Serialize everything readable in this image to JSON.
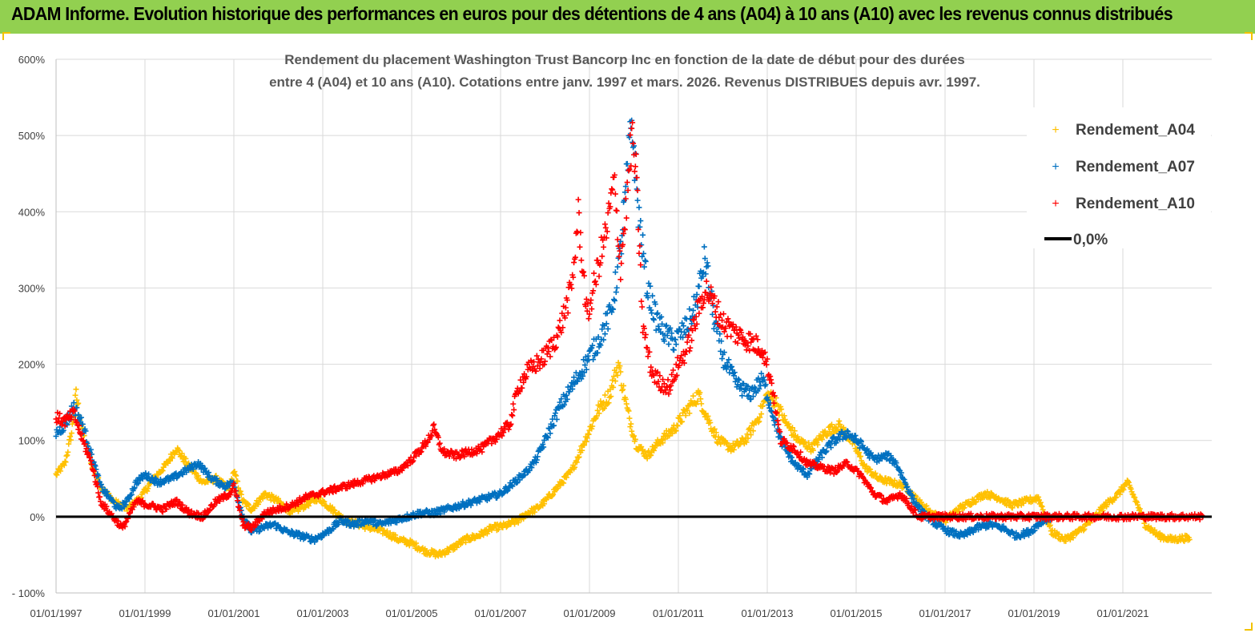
{
  "header": {
    "title": "ADAM Informe. Evolution historique des performances en euros pour des détentions de 4 ans (A04) à 10 ans (A10) avec les revenus connus distribués"
  },
  "colors": {
    "banner": "#92d050",
    "a04": "#ffc000",
    "a07": "#0070c0",
    "a10": "#ff0000",
    "zero": "#000000",
    "grid": "#d9d9d9"
  },
  "chart_data": {
    "type": "scatter",
    "title_lines": [
      "Rendement du placement Washington Trust Bancorp Inc en fonction de la date de début pour des durées",
      "entre 4 (A04) et 10 ans (A10). Cotations entre janv. 1997 et mars. 2026. Revenus DISTRIBUES depuis avr. 1997."
    ],
    "xlabel": "",
    "ylabel": "",
    "x_range": [
      1997.0,
      2023.0
    ],
    "ylim": [
      -100,
      600
    ],
    "y_ticks": [
      -100,
      0,
      100,
      200,
      300,
      400,
      500,
      600
    ],
    "y_tick_labels": [
      "- 100%",
      "0%",
      "100%",
      "200%",
      "300%",
      "400%",
      "500%",
      "600%"
    ],
    "x_ticks": [
      1997,
      1999,
      2001,
      2003,
      2005,
      2007,
      2009,
      2011,
      2013,
      2015,
      2017,
      2019,
      2021
    ],
    "x_tick_labels": [
      "01/01/1997",
      "01/01/1999",
      "01/01/2001",
      "01/01/2003",
      "01/01/2005",
      "01/01/2007",
      "01/01/2009",
      "01/01/2011",
      "01/01/2013",
      "01/01/2015",
      "01/01/2017",
      "01/01/2019",
      "01/01/2021"
    ],
    "legend_position": "top-right",
    "series": [
      {
        "name": "Rendement_A04",
        "marker": "+",
        "points": [
          [
            1997.0,
            55
          ],
          [
            1997.2,
            70
          ],
          [
            1997.35,
            110
          ],
          [
            1997.45,
            160
          ],
          [
            1997.6,
            110
          ],
          [
            1997.8,
            70
          ],
          [
            1998.0,
            40
          ],
          [
            1998.3,
            20
          ],
          [
            1998.6,
            10
          ],
          [
            1998.9,
            25
          ],
          [
            1999.2,
            50
          ],
          [
            1999.5,
            70
          ],
          [
            1999.7,
            90
          ],
          [
            2000.0,
            65
          ],
          [
            2000.3,
            45
          ],
          [
            2000.6,
            50
          ],
          [
            2000.9,
            35
          ],
          [
            2001.0,
            60
          ],
          [
            2001.2,
            20
          ],
          [
            2001.4,
            10
          ],
          [
            2001.7,
            30
          ],
          [
            2002.0,
            20
          ],
          [
            2002.3,
            5
          ],
          [
            2002.6,
            15
          ],
          [
            2002.9,
            25
          ],
          [
            2003.2,
            10
          ],
          [
            2003.5,
            -5
          ],
          [
            2003.8,
            -10
          ],
          [
            2004.1,
            -15
          ],
          [
            2004.4,
            -20
          ],
          [
            2004.7,
            -30
          ],
          [
            2005.0,
            -35
          ],
          [
            2005.3,
            -45
          ],
          [
            2005.6,
            -50
          ],
          [
            2005.9,
            -42
          ],
          [
            2006.2,
            -30
          ],
          [
            2006.5,
            -25
          ],
          [
            2006.8,
            -15
          ],
          [
            2007.1,
            -12
          ],
          [
            2007.4,
            -5
          ],
          [
            2007.6,
            5
          ],
          [
            2007.8,
            10
          ],
          [
            2008.0,
            20
          ],
          [
            2008.3,
            40
          ],
          [
            2008.6,
            60
          ],
          [
            2008.9,
            100
          ],
          [
            2009.2,
            140
          ],
          [
            2009.45,
            160
          ],
          [
            2009.65,
            200
          ],
          [
            2009.85,
            140
          ],
          [
            2010.05,
            95
          ],
          [
            2010.3,
            80
          ],
          [
            2010.6,
            100
          ],
          [
            2010.9,
            115
          ],
          [
            2011.2,
            140
          ],
          [
            2011.45,
            160
          ],
          [
            2011.65,
            130
          ],
          [
            2011.9,
            100
          ],
          [
            2012.2,
            90
          ],
          [
            2012.5,
            100
          ],
          [
            2012.8,
            130
          ],
          [
            2013.0,
            160
          ],
          [
            2013.2,
            150
          ],
          [
            2013.4,
            125
          ],
          [
            2013.7,
            100
          ],
          [
            2014.0,
            90
          ],
          [
            2014.3,
            110
          ],
          [
            2014.6,
            120
          ],
          [
            2014.9,
            100
          ],
          [
            2015.2,
            65
          ],
          [
            2015.5,
            50
          ],
          [
            2015.8,
            45
          ],
          [
            2016.1,
            40
          ],
          [
            2016.4,
            20
          ],
          [
            2016.7,
            5
          ],
          [
            2017.0,
            -5
          ],
          [
            2017.3,
            10
          ],
          [
            2017.6,
            20
          ],
          [
            2017.9,
            30
          ],
          [
            2018.2,
            25
          ],
          [
            2018.5,
            15
          ],
          [
            2018.8,
            20
          ],
          [
            2019.1,
            25
          ],
          [
            2019.4,
            -20
          ],
          [
            2019.7,
            -30
          ],
          [
            2020.0,
            -20
          ],
          [
            2020.3,
            -5
          ],
          [
            2020.6,
            15
          ],
          [
            2020.9,
            30
          ],
          [
            2021.1,
            45
          ],
          [
            2021.3,
            20
          ],
          [
            2021.5,
            -10
          ],
          [
            2021.8,
            -25
          ],
          [
            2022.1,
            -30
          ],
          [
            2022.4,
            -28
          ],
          [
            2022.5,
            -30
          ]
        ]
      },
      {
        "name": "Rendement_A07",
        "marker": "+",
        "points": [
          [
            1997.0,
            110
          ],
          [
            1997.2,
            120
          ],
          [
            1997.4,
            145
          ],
          [
            1997.6,
            120
          ],
          [
            1997.8,
            80
          ],
          [
            1998.0,
            40
          ],
          [
            1998.2,
            25
          ],
          [
            1998.4,
            10
          ],
          [
            1998.6,
            20
          ],
          [
            1998.8,
            45
          ],
          [
            1999.0,
            55
          ],
          [
            1999.3,
            45
          ],
          [
            1999.6,
            50
          ],
          [
            1999.9,
            60
          ],
          [
            2000.2,
            70
          ],
          [
            2000.5,
            50
          ],
          [
            2000.8,
            40
          ],
          [
            2001.0,
            45
          ],
          [
            2001.2,
            0
          ],
          [
            2001.4,
            -20
          ],
          [
            2001.6,
            -15
          ],
          [
            2001.9,
            -10
          ],
          [
            2002.2,
            -20
          ],
          [
            2002.5,
            -25
          ],
          [
            2002.8,
            -30
          ],
          [
            2003.1,
            -20
          ],
          [
            2003.4,
            -5
          ],
          [
            2003.7,
            -10
          ],
          [
            2004.0,
            -5
          ],
          [
            2004.3,
            -10
          ],
          [
            2004.6,
            -5
          ],
          [
            2004.9,
            0
          ],
          [
            2005.2,
            5
          ],
          [
            2005.5,
            5
          ],
          [
            2005.8,
            10
          ],
          [
            2006.1,
            15
          ],
          [
            2006.4,
            20
          ],
          [
            2006.7,
            25
          ],
          [
            2007.0,
            30
          ],
          [
            2007.3,
            45
          ],
          [
            2007.6,
            60
          ],
          [
            2007.8,
            75
          ],
          [
            2008.0,
            100
          ],
          [
            2008.3,
            140
          ],
          [
            2008.6,
            170
          ],
          [
            2008.9,
            200
          ],
          [
            2009.2,
            230
          ],
          [
            2009.5,
            270
          ],
          [
            2009.7,
            350
          ],
          [
            2009.85,
            450
          ],
          [
            2009.95,
            520
          ],
          [
            2010.1,
            400
          ],
          [
            2010.3,
            300
          ],
          [
            2010.5,
            260
          ],
          [
            2010.7,
            240
          ],
          [
            2010.9,
            230
          ],
          [
            2011.2,
            250
          ],
          [
            2011.4,
            280
          ],
          [
            2011.6,
            340
          ],
          [
            2011.8,
            260
          ],
          [
            2012.0,
            210
          ],
          [
            2012.3,
            175
          ],
          [
            2012.6,
            160
          ],
          [
            2012.9,
            180
          ],
          [
            2013.1,
            140
          ],
          [
            2013.3,
            100
          ],
          [
            2013.6,
            70
          ],
          [
            2013.9,
            55
          ],
          [
            2014.2,
            80
          ],
          [
            2014.5,
            100
          ],
          [
            2014.8,
            110
          ],
          [
            2015.1,
            95
          ],
          [
            2015.4,
            75
          ],
          [
            2015.7,
            80
          ],
          [
            2015.9,
            70
          ],
          [
            2016.1,
            45
          ],
          [
            2016.3,
            20
          ],
          [
            2016.5,
            5
          ],
          [
            2016.8,
            -10
          ],
          [
            2017.1,
            -20
          ],
          [
            2017.4,
            -25
          ],
          [
            2017.7,
            -15
          ],
          [
            2018.0,
            -10
          ],
          [
            2018.3,
            -15
          ],
          [
            2018.6,
            -25
          ],
          [
            2018.9,
            -20
          ],
          [
            2019.2,
            -5
          ],
          [
            2019.4,
            0
          ]
        ]
      },
      {
        "name": "Rendement_A10",
        "marker": "+",
        "points": [
          [
            1997.0,
            130
          ],
          [
            1997.2,
            125
          ],
          [
            1997.4,
            135
          ],
          [
            1997.6,
            100
          ],
          [
            1997.8,
            70
          ],
          [
            1998.0,
            20
          ],
          [
            1998.2,
            5
          ],
          [
            1998.5,
            -15
          ],
          [
            1998.8,
            20
          ],
          [
            1999.1,
            15
          ],
          [
            1999.4,
            10
          ],
          [
            1999.7,
            20
          ],
          [
            2000.0,
            5
          ],
          [
            2000.3,
            0
          ],
          [
            2000.6,
            20
          ],
          [
            2000.9,
            30
          ],
          [
            2001.0,
            40
          ],
          [
            2001.2,
            -10
          ],
          [
            2001.4,
            -15
          ],
          [
            2001.7,
            5
          ],
          [
            2002.0,
            10
          ],
          [
            2002.3,
            15
          ],
          [
            2002.6,
            25
          ],
          [
            2002.9,
            30
          ],
          [
            2003.2,
            35
          ],
          [
            2003.5,
            40
          ],
          [
            2003.8,
            45
          ],
          [
            2004.1,
            50
          ],
          [
            2004.4,
            55
          ],
          [
            2004.7,
            60
          ],
          [
            2005.0,
            75
          ],
          [
            2005.3,
            95
          ],
          [
            2005.5,
            115
          ],
          [
            2005.7,
            85
          ],
          [
            2006.0,
            80
          ],
          [
            2006.3,
            85
          ],
          [
            2006.6,
            90
          ],
          [
            2006.8,
            100
          ],
          [
            2007.0,
            110
          ],
          [
            2007.2,
            120
          ],
          [
            2007.4,
            170
          ],
          [
            2007.6,
            190
          ],
          [
            2007.8,
            200
          ],
          [
            2008.0,
            210
          ],
          [
            2008.3,
            240
          ],
          [
            2008.6,
            300
          ],
          [
            2008.75,
            395
          ],
          [
            2008.95,
            260
          ],
          [
            2009.2,
            330
          ],
          [
            2009.4,
            380
          ],
          [
            2009.55,
            440
          ],
          [
            2009.7,
            330
          ],
          [
            2009.85,
            420
          ],
          [
            2009.95,
            500
          ],
          [
            2010.05,
            450
          ],
          [
            2010.2,
            250
          ],
          [
            2010.4,
            190
          ],
          [
            2010.6,
            175
          ],
          [
            2010.8,
            170
          ],
          [
            2011.0,
            200
          ],
          [
            2011.2,
            220
          ],
          [
            2011.4,
            260
          ],
          [
            2011.6,
            300
          ],
          [
            2011.8,
            280
          ],
          [
            2012.0,
            255
          ],
          [
            2012.3,
            240
          ],
          [
            2012.6,
            230
          ],
          [
            2012.9,
            220
          ],
          [
            2013.1,
            175
          ],
          [
            2013.3,
            100
          ],
          [
            2013.6,
            90
          ],
          [
            2013.9,
            70
          ],
          [
            2014.2,
            65
          ],
          [
            2014.5,
            60
          ],
          [
            2014.8,
            70
          ],
          [
            2015.1,
            55
          ],
          [
            2015.4,
            30
          ],
          [
            2015.7,
            20
          ],
          [
            2016.0,
            30
          ],
          [
            2016.2,
            15
          ],
          [
            2016.4,
            0
          ],
          [
            2017.0,
            0
          ],
          [
            2018.0,
            0
          ],
          [
            2019.0,
            0
          ],
          [
            2020.0,
            0
          ],
          [
            2021.0,
            0
          ],
          [
            2022.0,
            0
          ],
          [
            2022.8,
            0
          ]
        ]
      }
    ],
    "reference_line": {
      "name": "0,0%",
      "y": 0
    }
  }
}
